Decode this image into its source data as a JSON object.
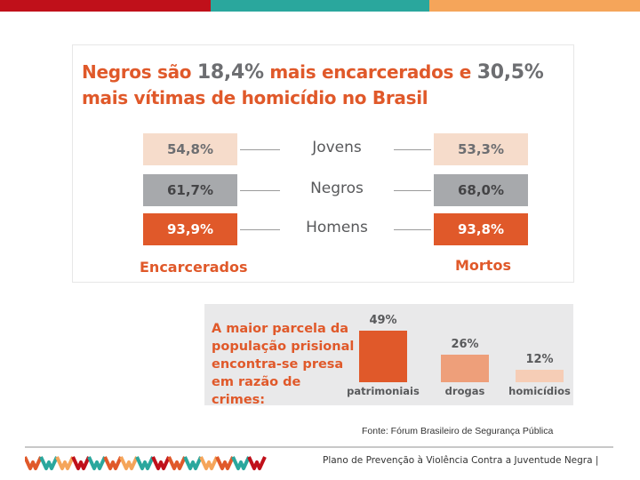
{
  "colors": {
    "orange": "#e0592a",
    "gray": "#6d6e71",
    "peach": "#f6dccb",
    "lightgray": "#a7a9ac",
    "red": "#c0101a",
    "teal": "#2aa79d",
    "lightorange": "#f5a55a"
  },
  "chart_data": [
    {
      "type": "table",
      "title_parts": [
        "Negros são ",
        "18,4%",
        " mais encarcerados e ",
        "30,5%",
        " mais vítimas de homicídio no Brasil"
      ],
      "rows": [
        {
          "label": "Jovens",
          "left": "54,8%",
          "right": "53,3%"
        },
        {
          "label": "Negros",
          "left": "61,7%",
          "right": "68,0%"
        },
        {
          "label": "Homens",
          "left": "93,9%",
          "right": "93,8%"
        }
      ],
      "left_header": "Encarcerados",
      "right_header": "Mortos"
    },
    {
      "type": "bar",
      "title": "A maior parcela da população prisional encontra-se presa em razão de crimes:",
      "categories": [
        "patrimoniais",
        "drogas",
        "homicídios"
      ],
      "values": [
        49,
        26,
        12
      ],
      "labels": [
        "49%",
        "26%",
        "12%"
      ],
      "colors": [
        "#e0592a",
        "#ee9f7a",
        "#f6cdb6"
      ],
      "ylim": [
        0,
        49
      ]
    }
  ],
  "source": "Fonte: Fórum Brasileiro de Segurança Pública",
  "footer": "Plano de Prevenção à Violência Contra a Juventude Negra |"
}
